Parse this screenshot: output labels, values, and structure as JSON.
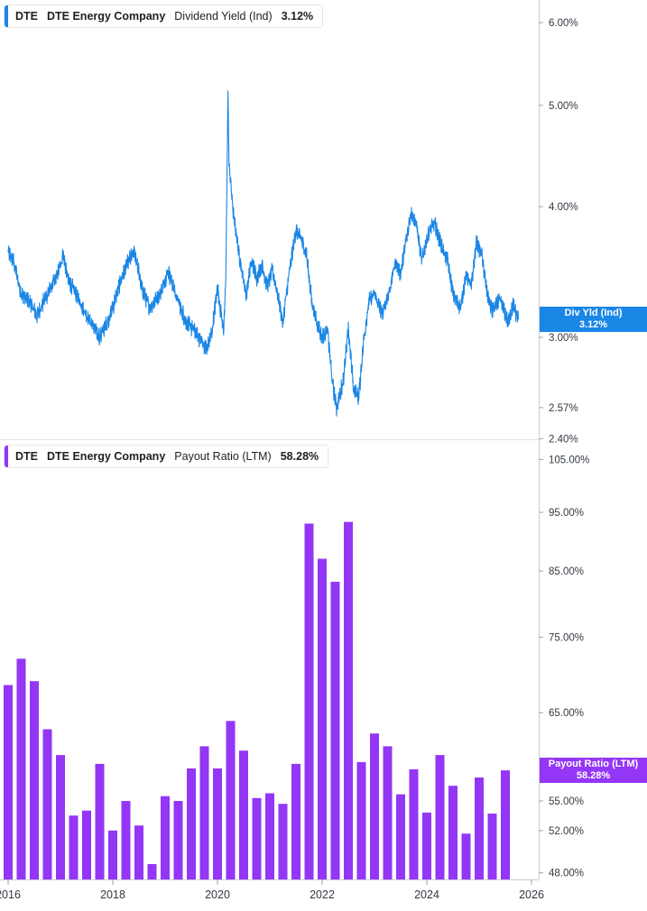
{
  "colors": {
    "yield": "#1a86e6",
    "payout": "#9336f5",
    "axis": "#9aa3ad",
    "text": "#333a42"
  },
  "top_legend": {
    "ticker": "DTE",
    "company": "DTE Energy Company",
    "metric": "Dividend Yield (Ind)",
    "value": "3.12%"
  },
  "bottom_legend": {
    "ticker": "DTE",
    "company": "DTE Energy Company",
    "metric": "Payout Ratio (LTM)",
    "value": "58.28%"
  },
  "top_tag": {
    "label": "Div Yld (Ind)",
    "value": "3.12%"
  },
  "bottom_tag": {
    "label": "Payout Ratio (LTM)",
    "value": "58.28%"
  },
  "chart_data": [
    {
      "type": "line",
      "title": "Dividend Yield (Ind)",
      "series": [
        {
          "name": "Dividend Yield (Ind)"
        }
      ],
      "scale": "log",
      "ylim": [
        2.4,
        6.3
      ],
      "xlim": [
        2015.95,
        2026.15
      ],
      "y_ticks": [
        {
          "value": 6.0,
          "label": "6.00%"
        },
        {
          "value": 5.0,
          "label": "5.00%"
        },
        {
          "value": 4.0,
          "label": "4.00%"
        },
        {
          "value": 3.0,
          "label": "3.00%"
        },
        {
          "value": 2.57,
          "label": "2.57%"
        },
        {
          "value": 2.4,
          "label": "2.40%"
        }
      ],
      "anchors": [
        [
          2016.0,
          3.62
        ],
        [
          2016.1,
          3.55
        ],
        [
          2016.25,
          3.3
        ],
        [
          2016.4,
          3.25
        ],
        [
          2016.55,
          3.15
        ],
        [
          2016.75,
          3.3
        ],
        [
          2016.95,
          3.45
        ],
        [
          2017.05,
          3.6
        ],
        [
          2017.15,
          3.4
        ],
        [
          2017.3,
          3.3
        ],
        [
          2017.5,
          3.15
        ],
        [
          2017.75,
          3.0
        ],
        [
          2017.9,
          3.1
        ],
        [
          2018.0,
          3.2
        ],
        [
          2018.15,
          3.4
        ],
        [
          2018.3,
          3.55
        ],
        [
          2018.42,
          3.62
        ],
        [
          2018.55,
          3.35
        ],
        [
          2018.7,
          3.2
        ],
        [
          2018.9,
          3.3
        ],
        [
          2019.0,
          3.4
        ],
        [
          2019.05,
          3.48
        ],
        [
          2019.2,
          3.3
        ],
        [
          2019.3,
          3.2
        ],
        [
          2019.4,
          3.1
        ],
        [
          2019.55,
          3.05
        ],
        [
          2019.7,
          2.97
        ],
        [
          2019.8,
          2.92
        ],
        [
          2019.9,
          3.05
        ],
        [
          2019.95,
          3.2
        ],
        [
          2020.0,
          3.35
        ],
        [
          2020.07,
          3.15
        ],
        [
          2020.12,
          3.05
        ],
        [
          2020.16,
          3.4
        ],
        [
          2020.19,
          4.6
        ],
        [
          2020.2,
          5.2
        ],
        [
          2020.22,
          4.4
        ],
        [
          2020.3,
          3.95
        ],
        [
          2020.38,
          3.7
        ],
        [
          2020.45,
          3.5
        ],
        [
          2020.55,
          3.3
        ],
        [
          2020.65,
          3.55
        ],
        [
          2020.75,
          3.42
        ],
        [
          2020.85,
          3.52
        ],
        [
          2020.95,
          3.35
        ],
        [
          2021.05,
          3.48
        ],
        [
          2021.15,
          3.3
        ],
        [
          2021.25,
          3.1
        ],
        [
          2021.35,
          3.4
        ],
        [
          2021.5,
          3.8
        ],
        [
          2021.6,
          3.72
        ],
        [
          2021.7,
          3.6
        ],
        [
          2021.8,
          3.25
        ],
        [
          2021.9,
          3.1
        ],
        [
          2022.0,
          3.0
        ],
        [
          2022.1,
          3.05
        ],
        [
          2022.2,
          2.7
        ],
        [
          2022.28,
          2.57
        ],
        [
          2022.4,
          2.72
        ],
        [
          2022.5,
          3.05
        ],
        [
          2022.6,
          2.68
        ],
        [
          2022.7,
          2.63
        ],
        [
          2022.8,
          3.0
        ],
        [
          2022.9,
          3.25
        ],
        [
          2023.0,
          3.3
        ],
        [
          2023.15,
          3.15
        ],
        [
          2023.3,
          3.35
        ],
        [
          2023.4,
          3.55
        ],
        [
          2023.5,
          3.45
        ],
        [
          2023.6,
          3.7
        ],
        [
          2023.7,
          3.95
        ],
        [
          2023.8,
          3.85
        ],
        [
          2023.9,
          3.55
        ],
        [
          2024.05,
          3.8
        ],
        [
          2024.15,
          3.85
        ],
        [
          2024.25,
          3.7
        ],
        [
          2024.4,
          3.55
        ],
        [
          2024.5,
          3.3
        ],
        [
          2024.65,
          3.2
        ],
        [
          2024.75,
          3.45
        ],
        [
          2024.85,
          3.35
        ],
        [
          2024.95,
          3.7
        ],
        [
          2025.05,
          3.6
        ],
        [
          2025.15,
          3.3
        ],
        [
          2025.25,
          3.18
        ],
        [
          2025.4,
          3.26
        ],
        [
          2025.55,
          3.1
        ],
        [
          2025.65,
          3.22
        ],
        [
          2025.75,
          3.12
        ]
      ]
    },
    {
      "type": "bar",
      "title": "Payout Ratio (LTM)",
      "series": [
        {
          "name": "Payout Ratio (LTM)"
        }
      ],
      "scale": "log",
      "ylim": [
        47.5,
        107.0
      ],
      "y_ticks": [
        {
          "value": 105,
          "label": "105.00%"
        },
        {
          "value": 95,
          "label": "95.00%"
        },
        {
          "value": 85,
          "label": "85.00%"
        },
        {
          "value": 75,
          "label": "75.00%"
        },
        {
          "value": 65,
          "label": "65.00%"
        },
        {
          "value": 55,
          "label": "55.00%"
        },
        {
          "value": 52,
          "label": "52.00%"
        },
        {
          "value": 48,
          "label": "48.00%"
        }
      ],
      "x_ticks": [
        {
          "value": 2016,
          "label": "2016"
        },
        {
          "value": 2018,
          "label": "2018"
        },
        {
          "value": 2020,
          "label": "2020"
        },
        {
          "value": 2022,
          "label": "2022"
        },
        {
          "value": 2024,
          "label": "2024"
        },
        {
          "value": 2026,
          "label": "2026"
        }
      ],
      "bar_dates": [
        2016.0,
        2016.25,
        2016.5,
        2016.75,
        2017.0,
        2017.25,
        2017.5,
        2017.75,
        2018.0,
        2018.25,
        2018.5,
        2018.75,
        2019.0,
        2019.25,
        2019.5,
        2019.75,
        2020.0,
        2020.25,
        2020.5,
        2020.75,
        2021.0,
        2021.25,
        2021.5,
        2021.75,
        2022.0,
        2022.25,
        2022.5,
        2022.75,
        2023.0,
        2023.25,
        2023.5,
        2023.75,
        2024.0,
        2024.25,
        2024.5,
        2024.75,
        2025.0,
        2025.25,
        2025.5
      ],
      "values": [
        68.5,
        72.0,
        69.0,
        63.0,
        60.0,
        53.5,
        54.0,
        59.0,
        52.0,
        55.0,
        52.5,
        48.8,
        55.5,
        55.0,
        58.5,
        61.0,
        58.5,
        64.0,
        60.5,
        55.3,
        55.8,
        54.7,
        59.0,
        93.0,
        87.0,
        83.3,
        93.3,
        59.2,
        62.5,
        61.0,
        55.7,
        58.4,
        53.8,
        60.0,
        56.6,
        51.7,
        57.5,
        53.7,
        58.28
      ]
    }
  ]
}
